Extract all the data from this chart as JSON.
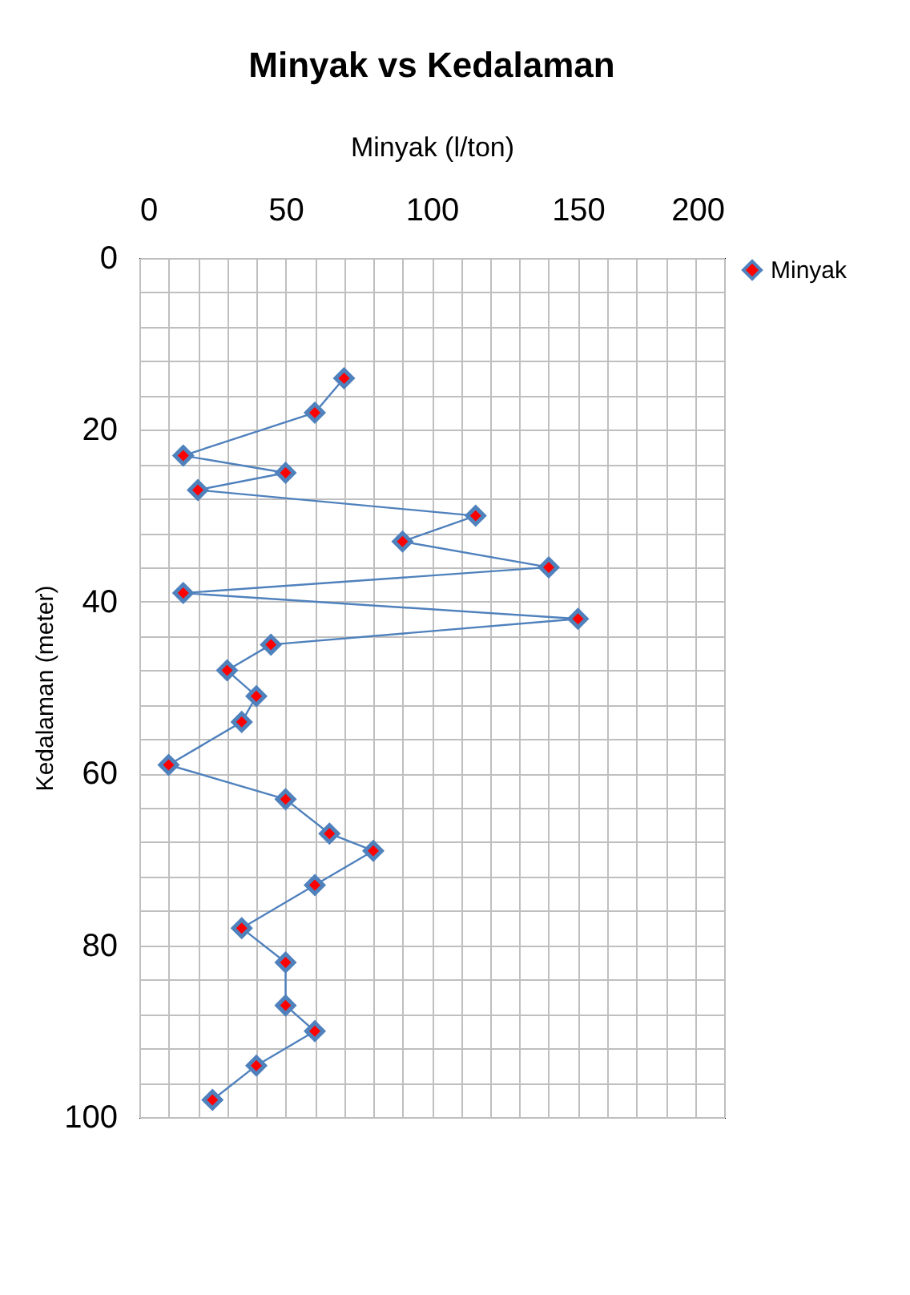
{
  "chart_data": {
    "type": "line",
    "title": "Minyak vs Kedalaman",
    "xlabel": "Minyak (l/ton)",
    "ylabel": "Kedalaman (meter)",
    "x": [
      70,
      60,
      15,
      50,
      20,
      115,
      90,
      140,
      15,
      150,
      45,
      30,
      40,
      35,
      10,
      50,
      65,
      80,
      60,
      35,
      50,
      50,
      60,
      40,
      25
    ],
    "series": [
      {
        "name": "Minyak",
        "color": "#4f81bd",
        "values": [
          14,
          18,
          23,
          25,
          27,
          30,
          33,
          36,
          39,
          42,
          45,
          48,
          51,
          54,
          59,
          63,
          67,
          69,
          73,
          78,
          82,
          87,
          90,
          94,
          98
        ]
      }
    ],
    "xlim": [
      0,
      200
    ],
    "xticks": [
      0,
      {
        "value": 10,
        "label": null
      },
      {
        "value": 20,
        "label": null
      },
      {
        "value": 30,
        "label": null
      },
      {
        "value": 40,
        "label": null
      },
      50,
      {
        "value": 60,
        "label": null
      },
      {
        "value": 70,
        "label": null
      },
      {
        "value": 80,
        "label": null
      },
      {
        "value": 90,
        "label": null
      },
      100,
      {
        "value": 110,
        "label": null
      },
      {
        "value": 120,
        "label": null
      },
      {
        "value": 130,
        "label": null
      },
      {
        "value": 140,
        "label": null
      },
      150,
      {
        "value": 160,
        "label": null
      },
      {
        "value": 170,
        "label": null
      },
      {
        "value": 180,
        "label": null
      },
      {
        "value": 190,
        "label": null
      },
      200
    ],
    "ylim": [
      100,
      0
    ],
    "yticks": [
      0,
      {
        "value": 4,
        "label": null
      },
      {
        "value": 8,
        "label": null
      },
      {
        "value": 12,
        "label": null
      },
      {
        "value": 16,
        "label": null
      },
      20,
      {
        "value": 24,
        "label": null
      },
      {
        "value": 28,
        "label": null
      },
      {
        "value": 32,
        "label": null
      },
      {
        "value": 36,
        "label": null
      },
      40,
      {
        "value": 44,
        "label": null
      },
      {
        "value": 48,
        "label": null
      },
      {
        "value": 52,
        "label": null
      },
      {
        "value": 56,
        "label": null
      },
      60,
      {
        "value": 64,
        "label": null
      },
      {
        "value": 68,
        "label": null
      },
      {
        "value": 72,
        "label": null
      },
      {
        "value": 76,
        "label": null
      },
      80,
      {
        "value": 84,
        "label": null
      },
      {
        "value": 88,
        "label": null
      },
      {
        "value": 92,
        "label": null
      },
      {
        "value": 96,
        "label": null
      },
      100
    ],
    "grid": true,
    "legend": "right",
    "marker": "diamond",
    "line_style": "solid"
  }
}
